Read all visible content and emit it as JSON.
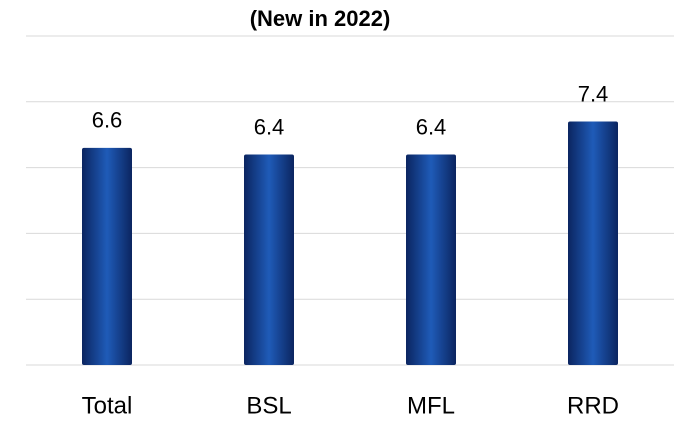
{
  "chart_data": {
    "type": "bar",
    "title": "(New in 2022)",
    "categories": [
      "Total",
      "BSL",
      "MFL",
      "RRD"
    ],
    "values": [
      6.6,
      6.4,
      6.4,
      7.4
    ],
    "color": "#1f5bb8",
    "ylim": [
      0,
      10
    ],
    "yticks": [
      0,
      2,
      4,
      6,
      8,
      10
    ],
    "grid": true
  }
}
